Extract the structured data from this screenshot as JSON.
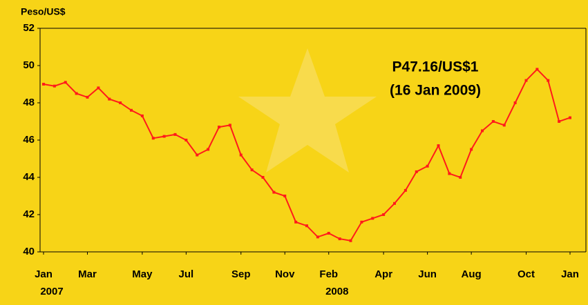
{
  "chart_data": {
    "type": "line",
    "y_label": "Peso/US$",
    "annotation": [
      "P47.16/US$1",
      "(16 Jan 2009)"
    ],
    "categories": [
      [
        "Jan",
        "2007"
      ],
      null,
      null,
      null,
      "Mar",
      null,
      null,
      null,
      null,
      "May",
      null,
      null,
      null,
      "Jul",
      null,
      null,
      null,
      null,
      "Sep",
      null,
      null,
      null,
      "Nov",
      null,
      null,
      null,
      [
        "Feb",
        "2008"
      ],
      null,
      null,
      null,
      null,
      "Apr",
      null,
      null,
      null,
      "Jun",
      null,
      null,
      null,
      "Aug",
      null,
      null,
      null,
      null,
      "Oct",
      null,
      null,
      null,
      "Jan"
    ],
    "values": [
      49.0,
      48.9,
      49.1,
      48.5,
      48.3,
      48.8,
      48.2,
      48.0,
      47.6,
      47.3,
      46.1,
      46.2,
      46.3,
      46.0,
      45.2,
      45.5,
      46.7,
      46.8,
      45.2,
      44.4,
      44.0,
      43.2,
      43.0,
      41.6,
      41.4,
      40.8,
      41.0,
      40.7,
      40.6,
      41.6,
      41.8,
      42.0,
      42.6,
      43.3,
      44.3,
      44.6,
      45.7,
      44.2,
      44.0,
      45.5,
      46.5,
      47.0,
      46.8,
      48.0,
      49.2,
      49.8,
      49.2,
      47.0,
      47.2
    ],
    "color": "#ff1a1a",
    "ylim": [
      40,
      52
    ],
    "yticks": [
      40,
      42,
      44,
      46,
      48,
      50,
      52
    ],
    "grid": false
  }
}
